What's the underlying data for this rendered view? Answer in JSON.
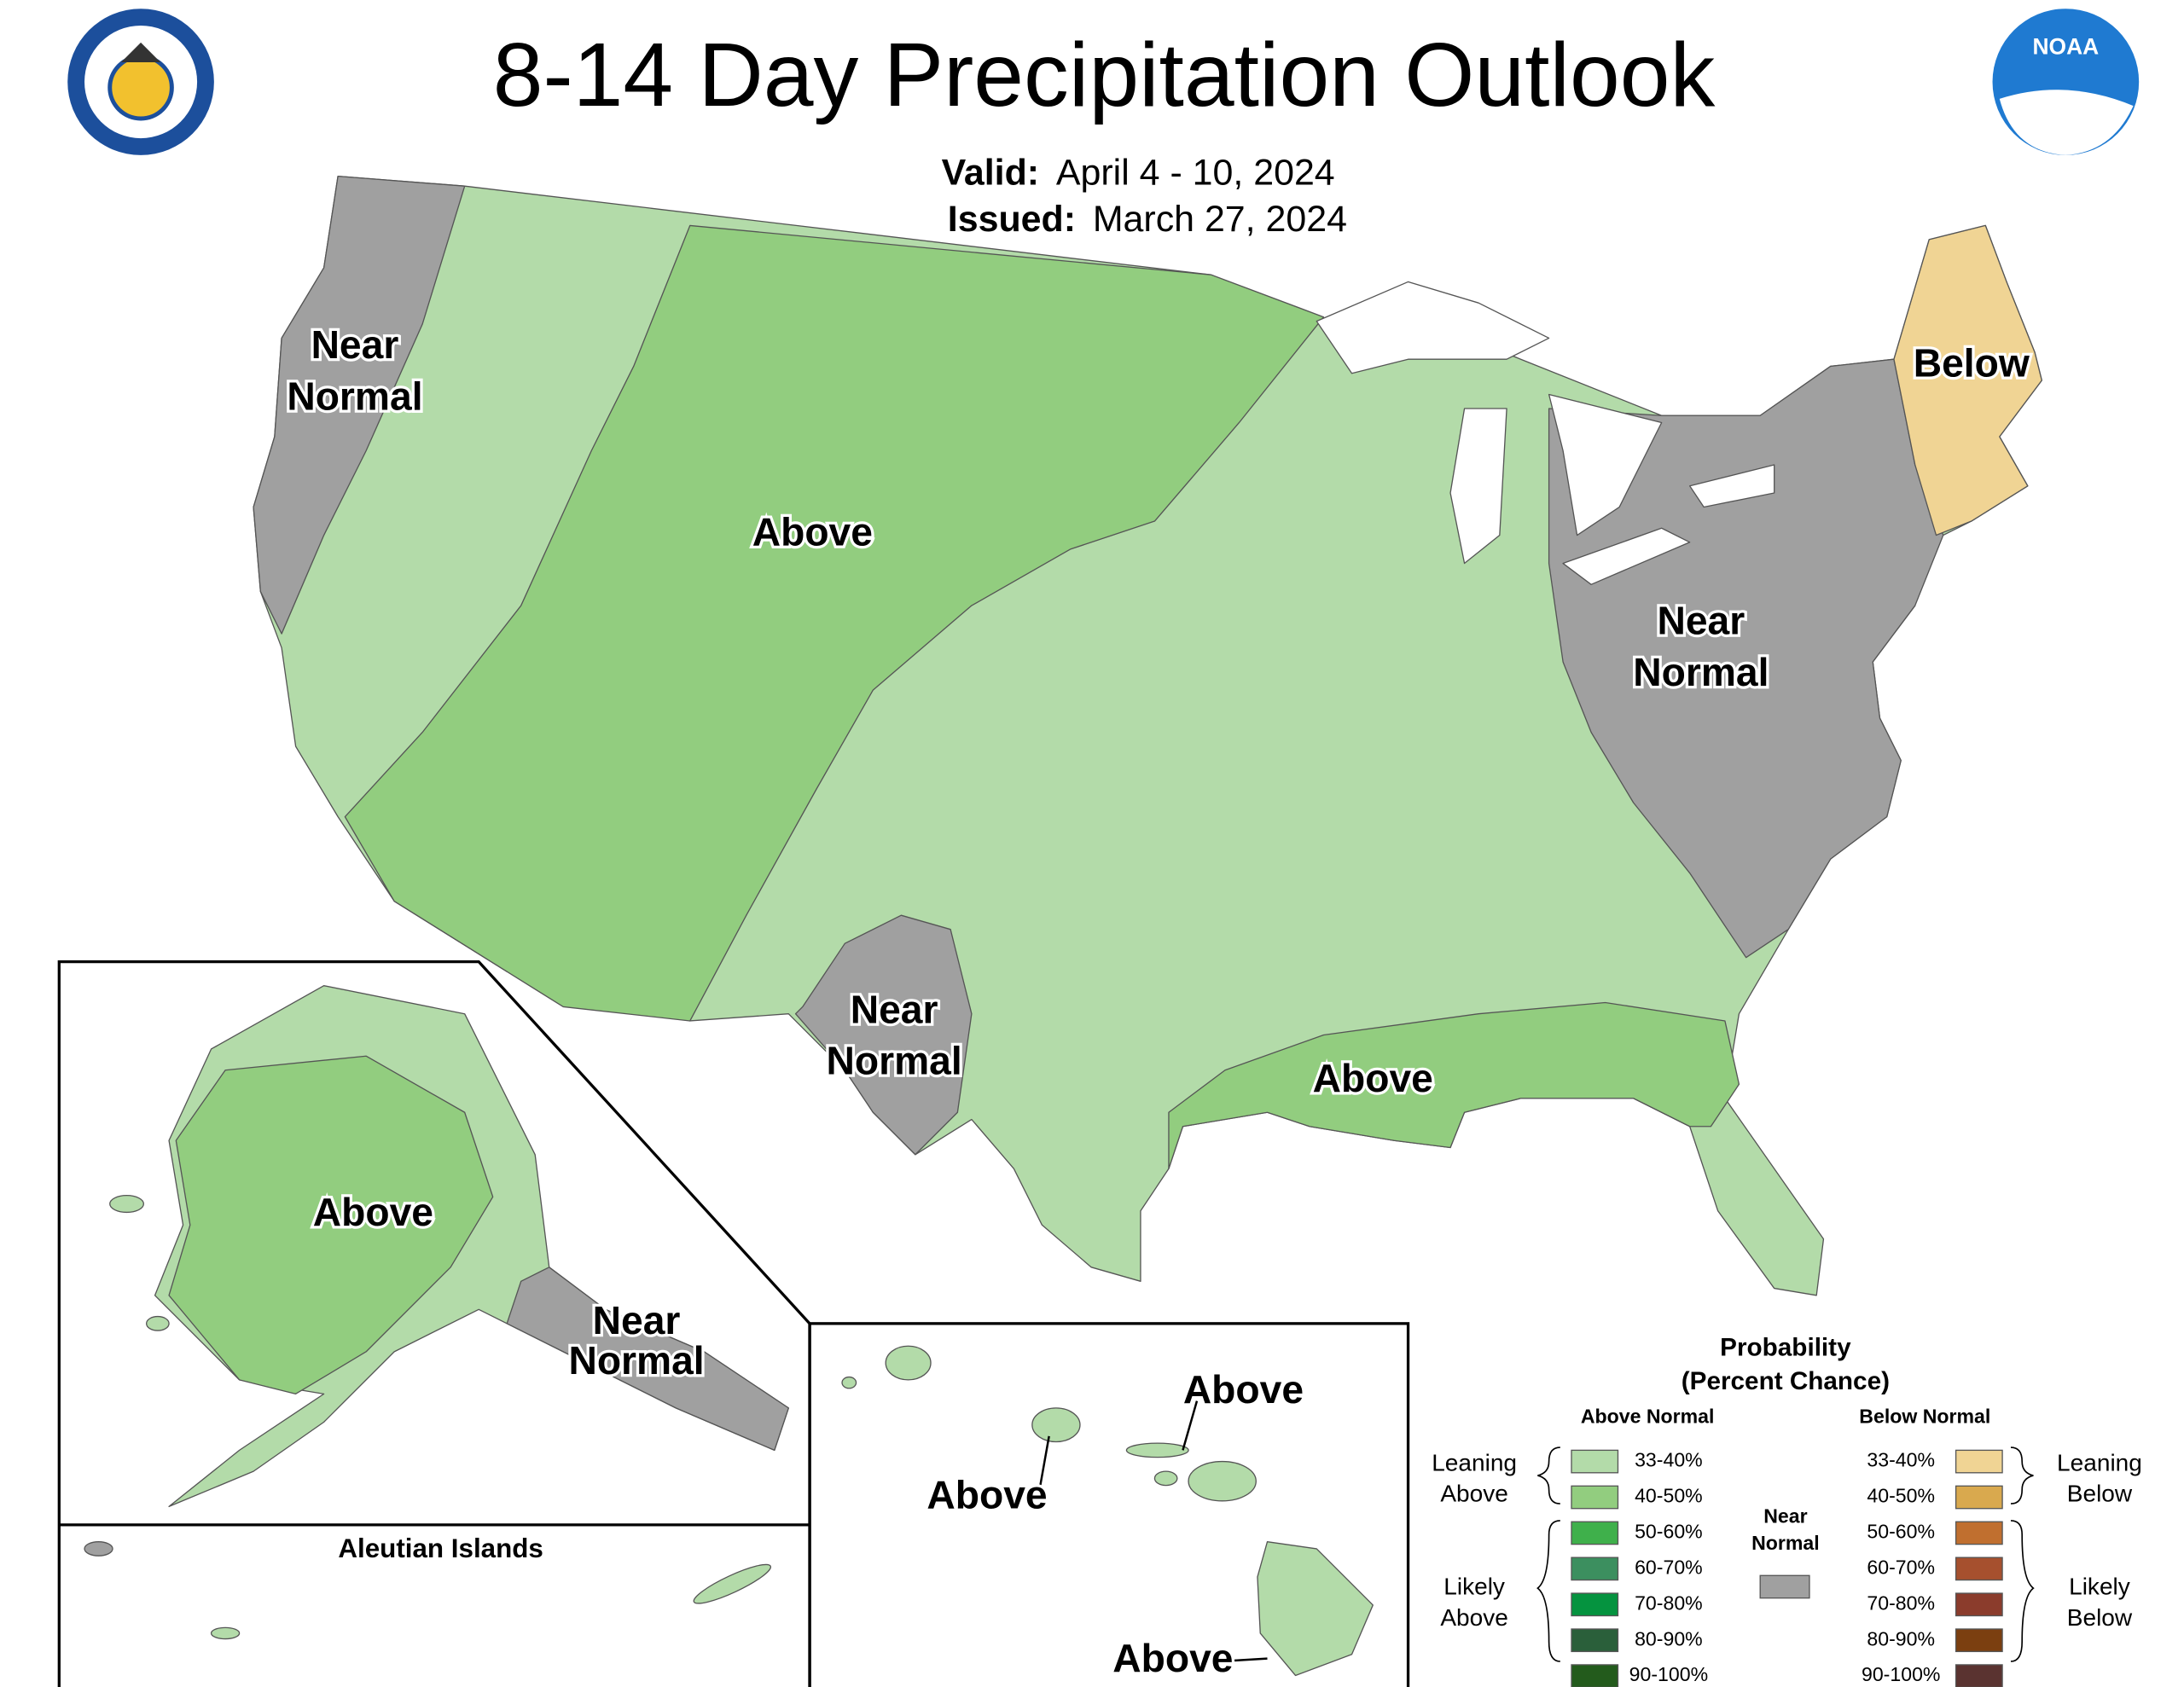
{
  "header": {
    "title": "8-14 Day Precipitation Outlook",
    "valid_label": "Valid:",
    "valid": "April 4 - 10, 2024",
    "issued_label": "Issued:",
    "issued": "March 27, 2024"
  },
  "logos": {
    "noaa": "NOAA"
  },
  "map_labels": [
    {
      "lines": [
        "Near",
        "Normal"
      ]
    },
    {
      "lines": [
        "Above"
      ]
    },
    {
      "lines": [
        "Below"
      ]
    },
    {
      "lines": [
        "Near",
        "Normal"
      ]
    },
    {
      "lines": [
        "Near",
        "Normal"
      ]
    },
    {
      "lines": [
        "Above"
      ]
    },
    {
      "lines": [
        "Above"
      ]
    },
    {
      "lines": [
        "Near",
        "Normal"
      ]
    },
    {
      "lines": [
        "Above"
      ]
    },
    {
      "lines": [
        "Above"
      ]
    },
    {
      "lines": [
        "Above"
      ]
    }
  ],
  "insets": {
    "aleutian_title": "Aleutian Islands"
  },
  "legend": {
    "title": "Probability",
    "subtitle": "(Percent Chance)",
    "above_heading": "Above Normal",
    "below_heading": "Below Normal",
    "near_normal": {
      "lines": [
        "Near",
        "Normal"
      ],
      "color": "#a0a0a0"
    },
    "above": [
      {
        "label": "33-40%",
        "color": "#b3dba9"
      },
      {
        "label": "40-50%",
        "color": "#92cd7f"
      },
      {
        "label": "50-60%",
        "color": "#3fb04b"
      },
      {
        "label": "60-70%",
        "color": "#3c8f5f"
      },
      {
        "label": "70-80%",
        "color": "#05933f"
      },
      {
        "label": "80-90%",
        "color": "#2a5f3a"
      },
      {
        "label": "90-100%",
        "color": "#235b1c"
      }
    ],
    "below": [
      {
        "label": "33-40%",
        "color": "#f0d494"
      },
      {
        "label": "40-50%",
        "color": "#d9a94e"
      },
      {
        "label": "50-60%",
        "color": "#c06f2f"
      },
      {
        "label": "60-70%",
        "color": "#a6502e"
      },
      {
        "label": "70-80%",
        "color": "#8b3c2c"
      },
      {
        "label": "80-90%",
        "color": "#7b3f10"
      },
      {
        "label": "90-100%",
        "color": "#5a3330"
      }
    ],
    "groups": [
      {
        "lines": [
          "Leaning",
          "Above"
        ]
      },
      {
        "lines": [
          "Likely",
          "Above"
        ]
      },
      {
        "lines": [
          "Leaning",
          "Below"
        ]
      },
      {
        "lines": [
          "Likely",
          "Below"
        ]
      }
    ]
  }
}
